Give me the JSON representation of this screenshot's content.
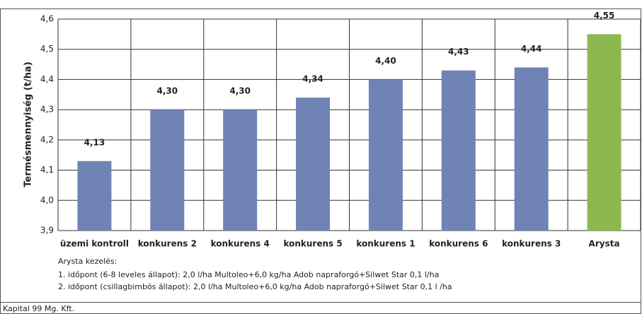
{
  "chart_data": {
    "type": "bar",
    "y_label": "Termésmennyiség (t/ha)",
    "categories": [
      "üzemi kontroll",
      "konkurens 2",
      "konkurens 4",
      "konkurens 5",
      "konkurens 1",
      "konkurens 6",
      "konkurens 3",
      "Arysta"
    ],
    "values": [
      4.13,
      4.3,
      4.3,
      4.34,
      4.4,
      4.43,
      4.44,
      4.55
    ],
    "value_labels": [
      "4,13",
      "4,30",
      "4,30",
      "4,34",
      "4,40",
      "4,43",
      "4,44",
      "4,55"
    ],
    "colors": [
      "#6f84b4",
      "#6f84b4",
      "#6f84b4",
      "#6f84b4",
      "#6f84b4",
      "#6f84b4",
      "#6f84b4",
      "#8db84f"
    ],
    "ylim": [
      3.9,
      4.6
    ],
    "yticks": [
      {
        "value": 3.9,
        "label": "3,9"
      },
      {
        "value": 4.0,
        "label": "4,0"
      },
      {
        "value": 4.1,
        "label": "4,1"
      },
      {
        "value": 4.2,
        "label": "4,2"
      },
      {
        "value": 4.3,
        "label": "4,3"
      },
      {
        "value": 4.4,
        "label": "4,4"
      },
      {
        "value": 4.5,
        "label": "4,5"
      },
      {
        "value": 4.6,
        "label": "4,6"
      }
    ],
    "grid": true,
    "notes": [
      "Arysta kezelés:",
      "1. időpont (6-8 leveles állapot): 2,0 l/ha Multoleo+6,0 kg/ha Adob napraforgó+Silwet Star 0,1 l/ha",
      "2. időpont (csillagbimbós állapot):  2,0 l/ha Multoleo+6,0 kg/ha Adob napraforgó+Silwet Star 0,1 l /ha"
    ],
    "source": "Kapital 99 Mg. Kft."
  }
}
